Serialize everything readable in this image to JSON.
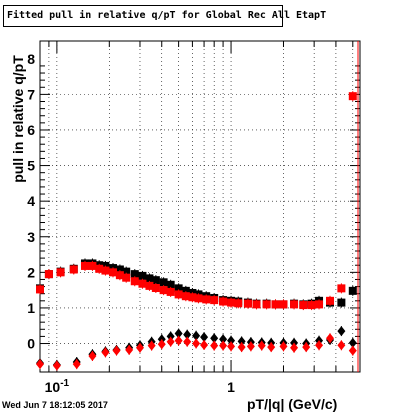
{
  "chart_data": {
    "type": "scatter",
    "title": "Fitted pull in relative q/pT  for Global Rec All EtapT",
    "xlabel": "pT/|q| (GeV/c)",
    "ylabel": "pull in relative q/pT",
    "x_scale": "log",
    "xlim": [
      0.08,
      5.5
    ],
    "ylim": [
      -0.8,
      8.5
    ],
    "grid": true,
    "timestamp": "Wed Jun  7 18:12:05 2017",
    "x_ticks": [
      {
        "value": 0.1,
        "label": "10",
        "exponent": "-1"
      },
      {
        "value": 1,
        "label": "1",
        "exponent": ""
      }
    ],
    "y_ticks": [
      0,
      1,
      2,
      3,
      4,
      5,
      6,
      7,
      8
    ],
    "series": [
      {
        "color": "#000000",
        "marker": "square",
        "points": [
          [
            0.08,
            1.55
          ],
          [
            0.09,
            1.95
          ],
          [
            0.105,
            2.02
          ],
          [
            0.125,
            2.1
          ],
          [
            0.145,
            2.25
          ],
          [
            0.16,
            2.25
          ],
          [
            0.175,
            2.2
          ],
          [
            0.19,
            2.18
          ],
          [
            0.21,
            2.12
          ],
          [
            0.23,
            2.08
          ],
          [
            0.25,
            2.02
          ],
          [
            0.28,
            1.95
          ],
          [
            0.31,
            1.9
          ],
          [
            0.34,
            1.83
          ],
          [
            0.37,
            1.78
          ],
          [
            0.41,
            1.72
          ],
          [
            0.45,
            1.65
          ],
          [
            0.5,
            1.55
          ],
          [
            0.55,
            1.48
          ],
          [
            0.6,
            1.42
          ],
          [
            0.65,
            1.38
          ],
          [
            0.72,
            1.33
          ],
          [
            0.8,
            1.28
          ],
          [
            0.9,
            1.22
          ],
          [
            1.0,
            1.2
          ],
          [
            1.1,
            1.18
          ],
          [
            1.25,
            1.15
          ],
          [
            1.4,
            1.12
          ],
          [
            1.6,
            1.12
          ],
          [
            1.8,
            1.1
          ],
          [
            2.0,
            1.1
          ],
          [
            2.3,
            1.12
          ],
          [
            2.6,
            1.1
          ],
          [
            2.9,
            1.12
          ],
          [
            3.2,
            1.2
          ],
          [
            3.7,
            1.15
          ],
          [
            4.3,
            1.15
          ],
          [
            5.0,
            1.48
          ]
        ]
      },
      {
        "color": "#ff0000",
        "marker": "square",
        "points": [
          [
            0.08,
            1.52
          ],
          [
            0.09,
            1.95
          ],
          [
            0.105,
            2.0
          ],
          [
            0.125,
            2.08
          ],
          [
            0.145,
            2.18
          ],
          [
            0.16,
            2.18
          ],
          [
            0.175,
            2.1
          ],
          [
            0.19,
            2.05
          ],
          [
            0.21,
            2.0
          ],
          [
            0.23,
            1.92
          ],
          [
            0.25,
            1.85
          ],
          [
            0.28,
            1.75
          ],
          [
            0.31,
            1.68
          ],
          [
            0.34,
            1.62
          ],
          [
            0.37,
            1.56
          ],
          [
            0.41,
            1.5
          ],
          [
            0.45,
            1.45
          ],
          [
            0.5,
            1.38
          ],
          [
            0.55,
            1.33
          ],
          [
            0.6,
            1.3
          ],
          [
            0.65,
            1.27
          ],
          [
            0.72,
            1.24
          ],
          [
            0.8,
            1.22
          ],
          [
            0.9,
            1.18
          ],
          [
            1.0,
            1.15
          ],
          [
            1.1,
            1.13
          ],
          [
            1.25,
            1.12
          ],
          [
            1.4,
            1.1
          ],
          [
            1.6,
            1.1
          ],
          [
            1.8,
            1.1
          ],
          [
            2.0,
            1.1
          ],
          [
            2.3,
            1.1
          ],
          [
            2.6,
            1.08
          ],
          [
            2.9,
            1.08
          ],
          [
            3.2,
            1.1
          ],
          [
            3.7,
            1.2
          ],
          [
            4.3,
            1.55
          ],
          [
            5.0,
            6.95
          ]
        ]
      },
      {
        "color": "#000000",
        "marker": "diamond",
        "points": [
          [
            0.08,
            -0.55
          ],
          [
            0.1,
            -0.6
          ],
          [
            0.13,
            -0.52
          ],
          [
            0.16,
            -0.3
          ],
          [
            0.19,
            -0.22
          ],
          [
            0.22,
            -0.18
          ],
          [
            0.26,
            -0.12
          ],
          [
            0.3,
            -0.05
          ],
          [
            0.35,
            0.05
          ],
          [
            0.4,
            0.12
          ],
          [
            0.45,
            0.2
          ],
          [
            0.5,
            0.28
          ],
          [
            0.56,
            0.25
          ],
          [
            0.63,
            0.22
          ],
          [
            0.7,
            0.18
          ],
          [
            0.8,
            0.15
          ],
          [
            0.9,
            0.12
          ],
          [
            1.0,
            0.08
          ],
          [
            1.15,
            0.06
          ],
          [
            1.3,
            0.04
          ],
          [
            1.5,
            0.03
          ],
          [
            1.7,
            0.02
          ],
          [
            2.0,
            0.02
          ],
          [
            2.3,
            0.02
          ],
          [
            2.7,
            0.0
          ],
          [
            3.2,
            0.08
          ],
          [
            3.7,
            0.1
          ],
          [
            4.3,
            0.35
          ],
          [
            5.0,
            0.02
          ]
        ]
      },
      {
        "color": "#ff0000",
        "marker": "diamond",
        "points": [
          [
            0.08,
            -0.58
          ],
          [
            0.1,
            -0.62
          ],
          [
            0.13,
            -0.58
          ],
          [
            0.16,
            -0.35
          ],
          [
            0.19,
            -0.25
          ],
          [
            0.22,
            -0.2
          ],
          [
            0.26,
            -0.18
          ],
          [
            0.3,
            -0.12
          ],
          [
            0.35,
            -0.06
          ],
          [
            0.4,
            -0.02
          ],
          [
            0.45,
            0.05
          ],
          [
            0.5,
            0.08
          ],
          [
            0.56,
            0.05
          ],
          [
            0.63,
            0.0
          ],
          [
            0.7,
            -0.04
          ],
          [
            0.8,
            -0.06
          ],
          [
            0.9,
            -0.06
          ],
          [
            1.0,
            -0.08
          ],
          [
            1.15,
            -0.1
          ],
          [
            1.3,
            -0.08
          ],
          [
            1.5,
            -0.06
          ],
          [
            1.7,
            -0.1
          ],
          [
            2.0,
            -0.08
          ],
          [
            2.3,
            -0.12
          ],
          [
            2.7,
            -0.1
          ],
          [
            3.2,
            -0.05
          ],
          [
            3.7,
            0.15
          ],
          [
            4.3,
            -0.05
          ],
          [
            5.0,
            -0.2
          ]
        ]
      }
    ]
  }
}
